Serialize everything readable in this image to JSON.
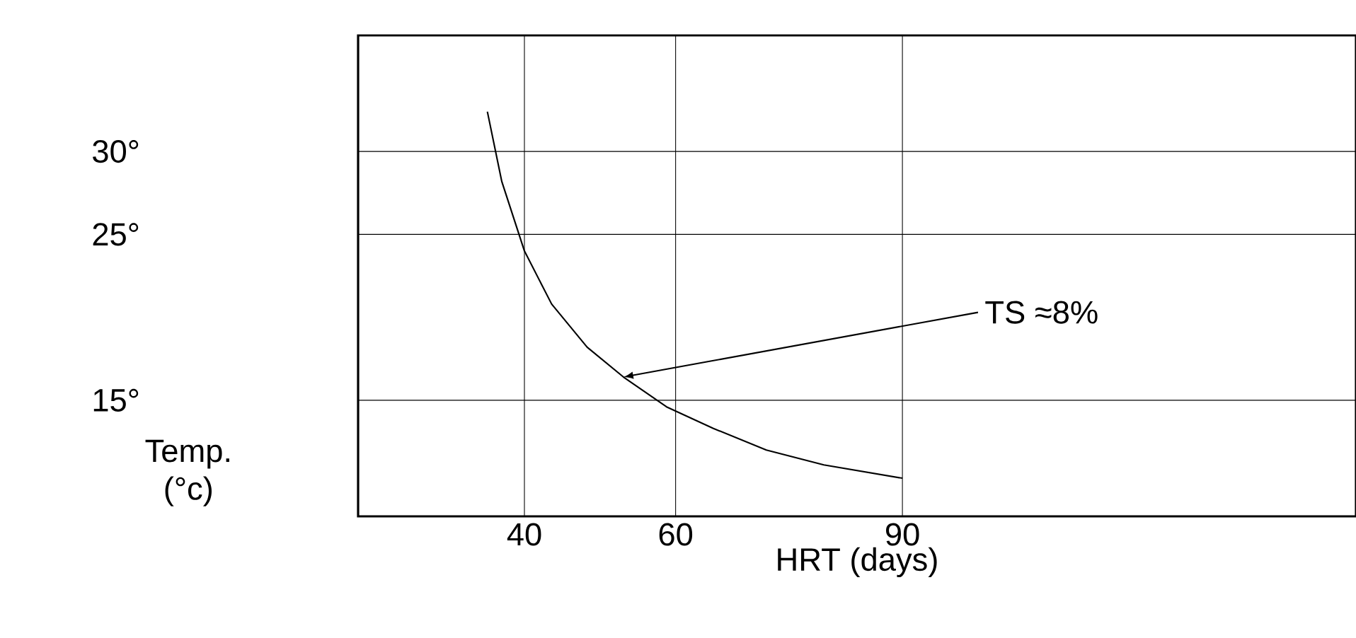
{
  "chart_data": {
    "type": "line",
    "xlabel": "HRT (days)",
    "ylabel": "Temp. (°c)",
    "x": [
      35.1,
      37.0,
      40,
      43.6,
      48.3,
      53.1,
      58.8,
      65.0,
      72.0,
      79.6,
      90
    ],
    "values": [
      32.4,
      28.2,
      24.0,
      20.8,
      18.2,
      16.4,
      14.6,
      13.3,
      12.0,
      11.1,
      10.3
    ],
    "color": "#000000",
    "xlim": [
      18,
      150
    ],
    "ylim": [
      8,
      37
    ],
    "xticks": [
      40,
      60,
      90
    ],
    "yticks": [
      {
        "value": 15,
        "label": "15°"
      },
      {
        "value": 25,
        "label": "25°"
      },
      {
        "value": 30,
        "label": "30°"
      }
    ],
    "grid": true,
    "annotations": [
      {
        "text": "TS ≈8%",
        "x": 53.1,
        "y": 16.4
      }
    ]
  }
}
